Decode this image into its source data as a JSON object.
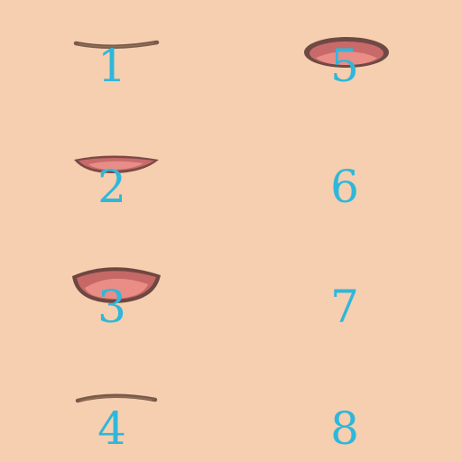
{
  "background_color": "#f5cfaf",
  "label_color": "#2fb7db",
  "frames": [
    {
      "label": "1",
      "mouth": "closed-smile"
    },
    {
      "label": "2",
      "mouth": "slightly-open"
    },
    {
      "label": "3",
      "mouth": "wide-open"
    },
    {
      "label": "4",
      "mouth": "closed-flat"
    },
    {
      "label": "5",
      "mouth": "round-open"
    },
    {
      "label": "6",
      "mouth": "none"
    },
    {
      "label": "7",
      "mouth": "none"
    },
    {
      "label": "8",
      "mouth": "none"
    }
  ]
}
